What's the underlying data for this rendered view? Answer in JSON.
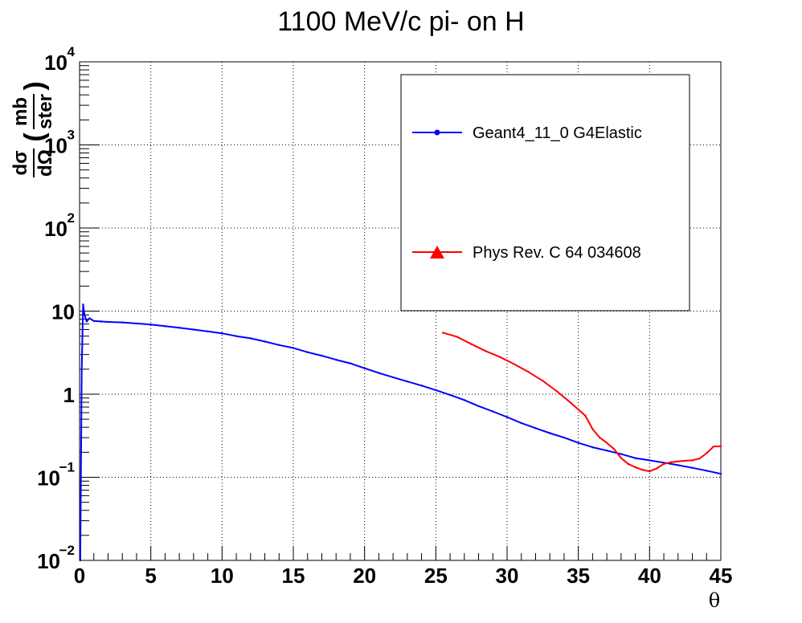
{
  "chart_data": {
    "type": "line",
    "title": "1100 MeV/c pi- on H",
    "xlabel": "θ",
    "ylabel": {
      "numerator": "dσ",
      "denominator": "dΩ",
      "unit_num": "mb",
      "unit_den": "ster"
    },
    "xlim": [
      0,
      45
    ],
    "ylim": [
      0.01,
      10000
    ],
    "y_scale": "log",
    "grid": true,
    "x_ticks": [
      "0",
      "5",
      "10",
      "15",
      "20",
      "25",
      "30",
      "35",
      "40",
      "45"
    ],
    "y_ticks": [
      {
        "value": 0.01,
        "base": "10",
        "exp": "−2"
      },
      {
        "value": 0.1,
        "base": "10",
        "exp": "−1"
      },
      {
        "value": 1,
        "base": "1",
        "exp": ""
      },
      {
        "value": 10,
        "base": "10",
        "exp": ""
      },
      {
        "value": 100,
        "base": "10",
        "exp": "2"
      },
      {
        "value": 1000,
        "base": "10",
        "exp": "3"
      },
      {
        "value": 10000,
        "base": "10",
        "exp": "4"
      }
    ],
    "legend_placement": "top-right",
    "series": [
      {
        "name": "Geant4_11_0 G4Elastic",
        "color": "#0000ff",
        "marker": "circle",
        "x": [
          0.05,
          0.15,
          0.25,
          0.35,
          0.5,
          0.7,
          1.0,
          1.5,
          2.0,
          3.0,
          4.0,
          5.0,
          6.0,
          7.0,
          8.0,
          9.0,
          10.0,
          11.0,
          12.0,
          13.0,
          14.0,
          15.0,
          16.0,
          17.0,
          18.0,
          19.0,
          20.0,
          21.0,
          22.0,
          23.0,
          24.0,
          25.0,
          26.0,
          27.0,
          28.0,
          29.0,
          30.0,
          31.0,
          32.0,
          33.0,
          34.0,
          35.0,
          36.0,
          37.0,
          38.0,
          39.0,
          40.0,
          41.0,
          42.0,
          43.0,
          44.0,
          45.0
        ],
        "y": [
          0.01,
          2.0,
          12.0,
          9.0,
          7.5,
          8.2,
          7.6,
          7.5,
          7.4,
          7.3,
          7.1,
          6.9,
          6.6,
          6.3,
          6.0,
          5.7,
          5.4,
          5.0,
          4.7,
          4.3,
          3.9,
          3.6,
          3.2,
          2.9,
          2.6,
          2.35,
          2.05,
          1.8,
          1.6,
          1.42,
          1.27,
          1.12,
          0.98,
          0.85,
          0.72,
          0.62,
          0.53,
          0.45,
          0.39,
          0.34,
          0.3,
          0.26,
          0.23,
          0.21,
          0.19,
          0.17,
          0.16,
          0.15,
          0.14,
          0.13,
          0.12,
          0.11
        ]
      },
      {
        "name": "Phys Rev. C 64 034608",
        "color": "#ff0000",
        "marker": "triangle",
        "x": [
          25.5,
          26.5,
          27.5,
          28.5,
          29.5,
          30.5,
          31.5,
          32.5,
          33.5,
          34.5,
          35.5,
          36.0,
          36.5,
          37.0,
          37.5,
          38.0,
          38.5,
          39.0,
          39.5,
          40.0,
          40.5,
          41.0,
          41.5,
          42.0,
          42.5,
          43.0,
          43.5,
          44.0,
          44.5,
          45.0
        ],
        "y": [
          5.5,
          4.9,
          4.0,
          3.3,
          2.8,
          2.3,
          1.85,
          1.45,
          1.08,
          0.78,
          0.55,
          0.38,
          0.3,
          0.26,
          0.22,
          0.17,
          0.145,
          0.132,
          0.123,
          0.118,
          0.128,
          0.145,
          0.152,
          0.155,
          0.158,
          0.16,
          0.168,
          0.195,
          0.235,
          0.236
        ]
      }
    ]
  }
}
